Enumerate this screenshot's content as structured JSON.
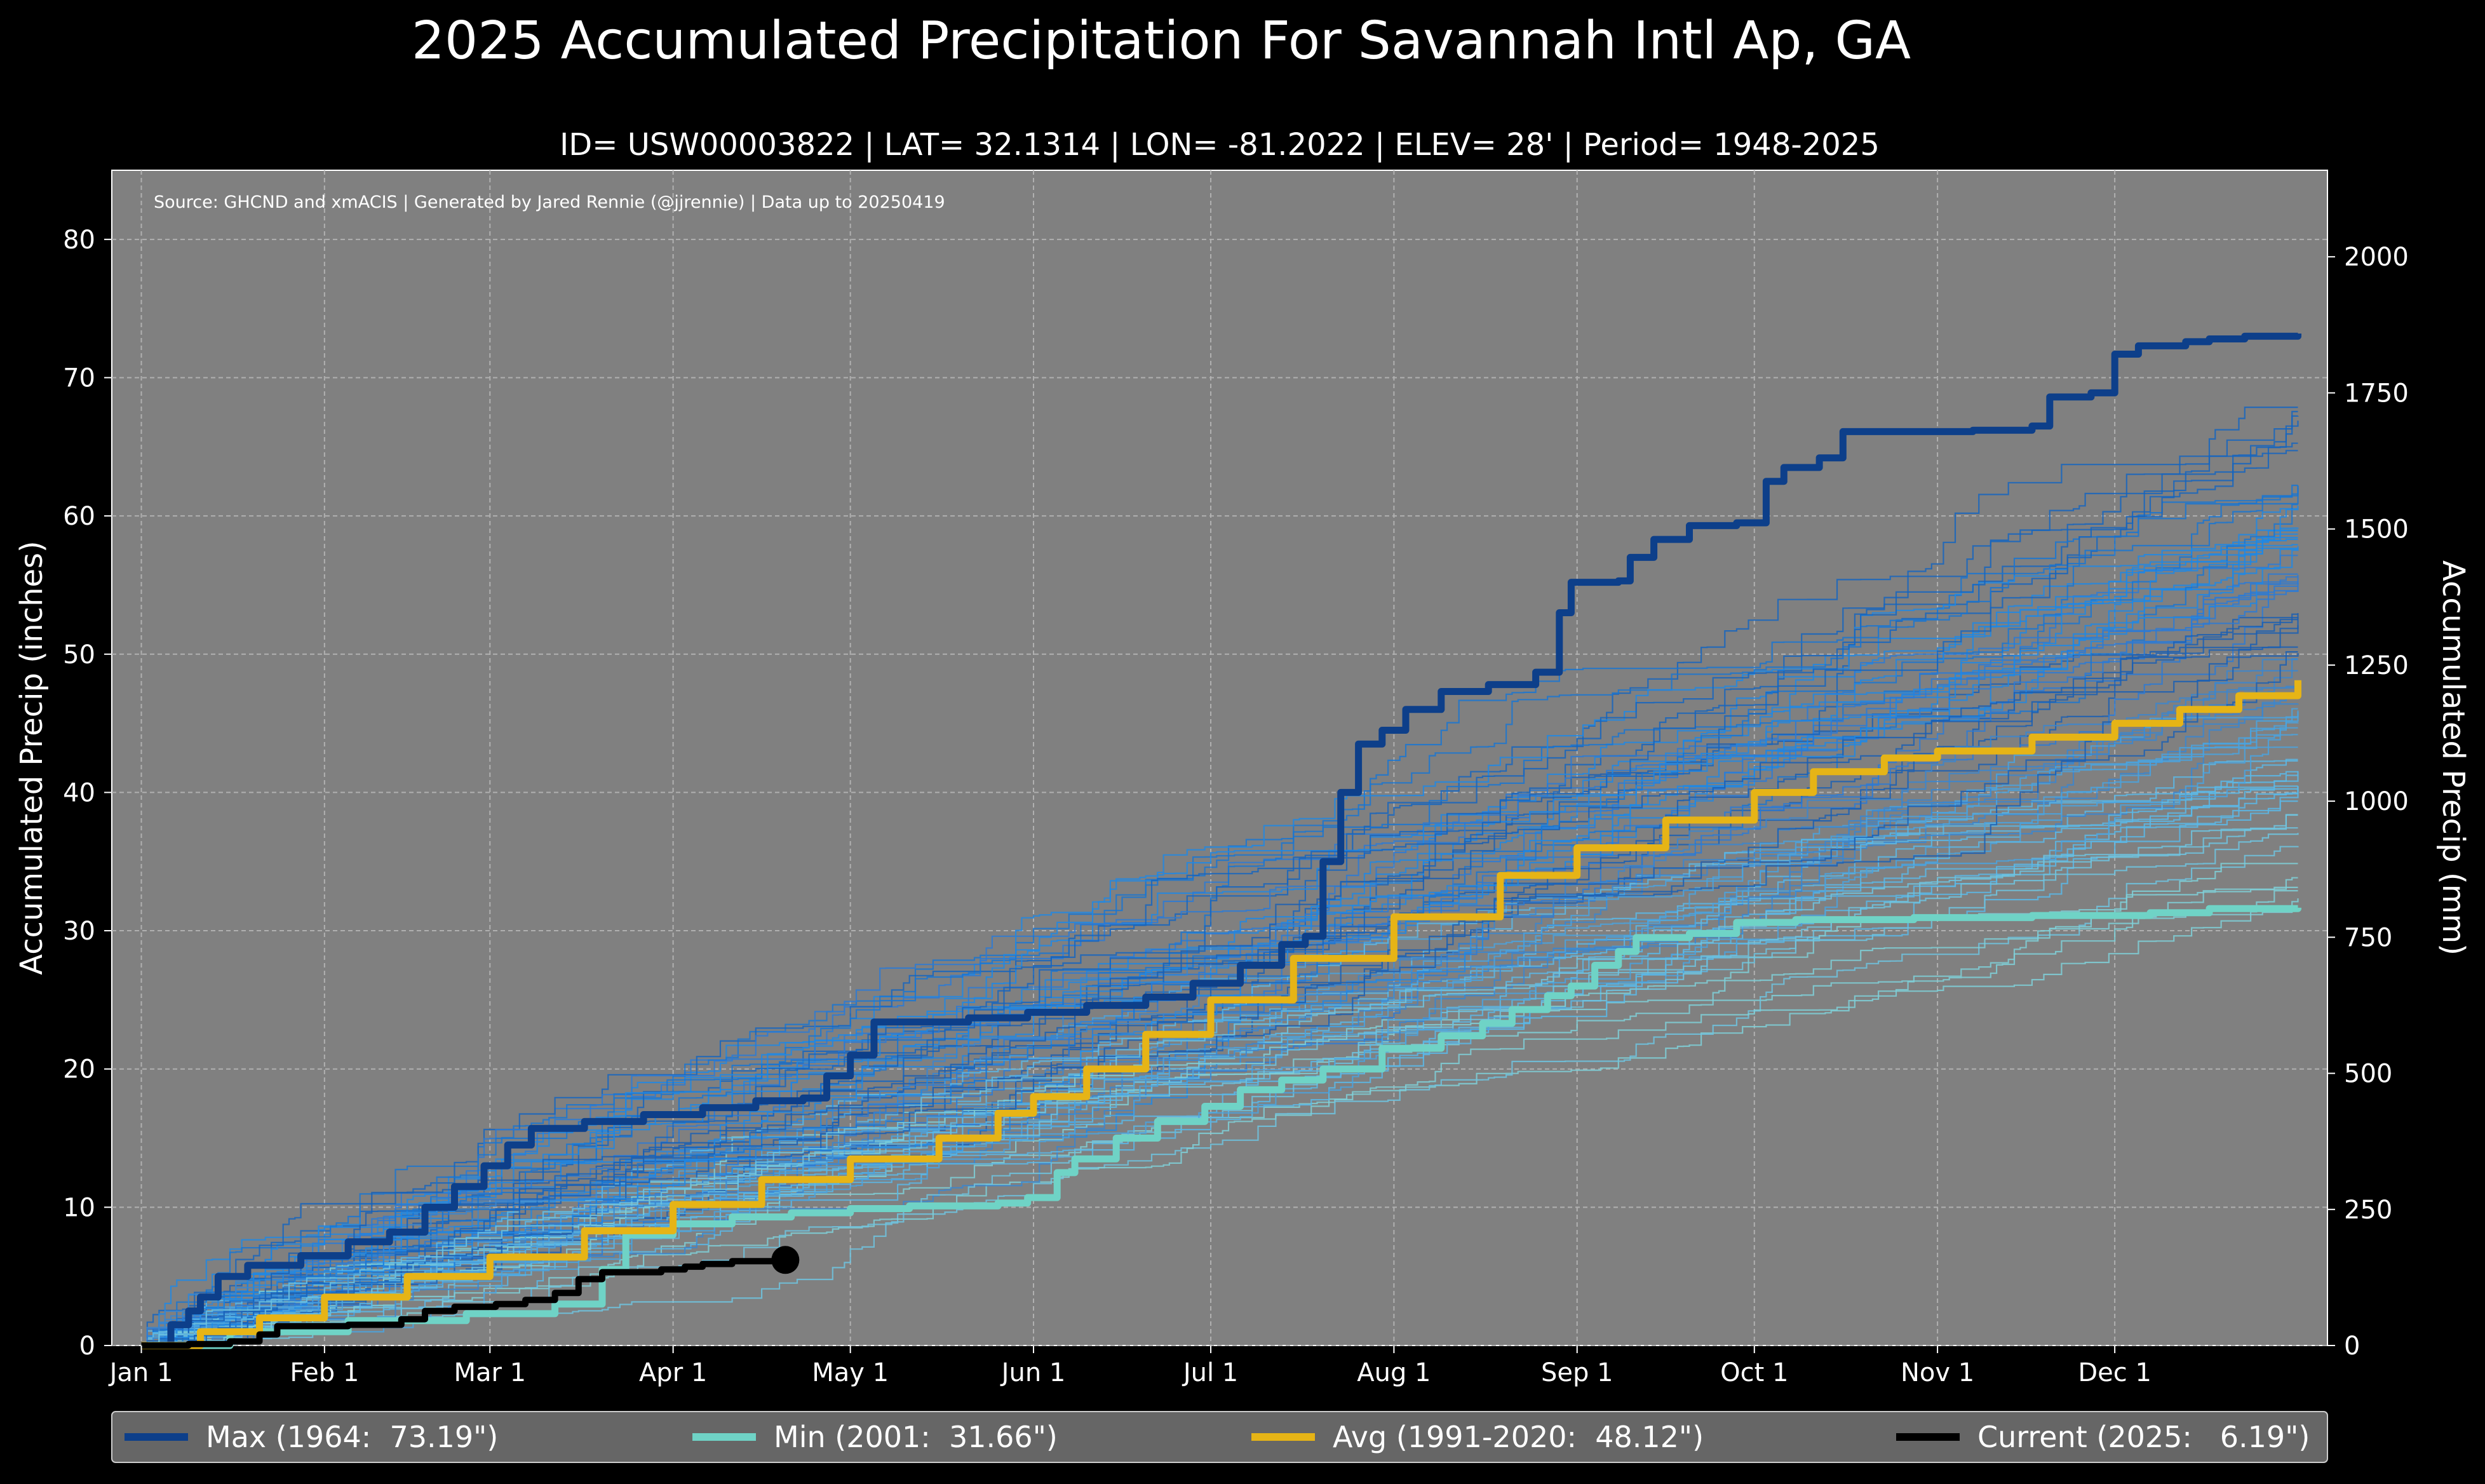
{
  "chart_data": {
    "type": "line",
    "title": "2025 Accumulated Precipitation For Savannah Intl Ap, GA",
    "subtitle": "ID= USW00003822 | LAT= 32.1314 | LON= -81.2022 | ELEV= 28' | Period= 1948-2025",
    "source": "Source: GHCND and xmACIS | Generated by Jared Rennie (@jjrennie) | Data up to 20250419",
    "ylabel": "Accumulated Precip (inches)",
    "ylabel_right": "Accumulated Precip (mm)",
    "ylim": [
      0,
      85
    ],
    "ylim_right_mm": [
      0,
      2159
    ],
    "xlim_day": [
      -5,
      370
    ],
    "x_ticks": [
      {
        "label": "Jan 1",
        "day": 0
      },
      {
        "label": "Feb 1",
        "day": 31
      },
      {
        "label": "Mar 1",
        "day": 59
      },
      {
        "label": "Apr 1",
        "day": 90
      },
      {
        "label": "May 1",
        "day": 120
      },
      {
        "label": "Jun 1",
        "day": 151
      },
      {
        "label": "Jul 1",
        "day": 181
      },
      {
        "label": "Aug 1",
        "day": 212
      },
      {
        "label": "Sep 1",
        "day": 243
      },
      {
        "label": "Oct 1",
        "day": 273
      },
      {
        "label": "Nov 1",
        "day": 304
      },
      {
        "label": "Dec 1",
        "day": 334
      }
    ],
    "y_ticks": [
      0,
      10,
      20,
      30,
      40,
      50,
      60,
      70,
      80
    ],
    "y_ticks_right_mm": [
      0,
      250,
      500,
      750,
      1000,
      1250,
      1500,
      1750,
      2000
    ],
    "grid": true,
    "series": [
      {
        "name": "Max (1964:  73.19\")",
        "color": "#0d3f8a",
        "points": [
          [
            0,
            0
          ],
          [
            5,
            1.5
          ],
          [
            8,
            2.5
          ],
          [
            10,
            3.5
          ],
          [
            13,
            5
          ],
          [
            18,
            5.8
          ],
          [
            27,
            6.5
          ],
          [
            35,
            7.5
          ],
          [
            42,
            8.2
          ],
          [
            48,
            10
          ],
          [
            53,
            11.5
          ],
          [
            58,
            13
          ],
          [
            62,
            14.5
          ],
          [
            66,
            15.7
          ],
          [
            75,
            16.2
          ],
          [
            85,
            16.7
          ],
          [
            95,
            17.2
          ],
          [
            104,
            17.7
          ],
          [
            112,
            17.9
          ],
          [
            116,
            19.5
          ],
          [
            120,
            21
          ],
          [
            124,
            23.4
          ],
          [
            140,
            23.7
          ],
          [
            150,
            24.1
          ],
          [
            160,
            24.6
          ],
          [
            170,
            25.2
          ],
          [
            178,
            26.2
          ],
          [
            186,
            27.5
          ],
          [
            193,
            29
          ],
          [
            197,
            29.6
          ],
          [
            200,
            35
          ],
          [
            203,
            40
          ],
          [
            206,
            43.5
          ],
          [
            210,
            44.5
          ],
          [
            214,
            46
          ],
          [
            220,
            47.3
          ],
          [
            228,
            47.8
          ],
          [
            236,
            48.7
          ],
          [
            240,
            53
          ],
          [
            242,
            55.2
          ],
          [
            250,
            55.3
          ],
          [
            252,
            57
          ],
          [
            256,
            58.3
          ],
          [
            262,
            59.3
          ],
          [
            270,
            59.5
          ],
          [
            275,
            62.5
          ],
          [
            278,
            63.5
          ],
          [
            284,
            64.2
          ],
          [
            288,
            66.1
          ],
          [
            300,
            66.1
          ],
          [
            310,
            66.2
          ],
          [
            320,
            66.5
          ],
          [
            323,
            68.6
          ],
          [
            330,
            68.9
          ],
          [
            334,
            71.7
          ],
          [
            338,
            72.3
          ],
          [
            346,
            72.6
          ],
          [
            350,
            72.8
          ],
          [
            356,
            73.0
          ],
          [
            365,
            73.19
          ]
        ]
      },
      {
        "name": "Min (2001:  31.66\")",
        "color": "#6fd3c6",
        "points": [
          [
            0,
            0
          ],
          [
            15,
            1.0
          ],
          [
            35,
            1.8
          ],
          [
            55,
            2.3
          ],
          [
            70,
            3.0
          ],
          [
            78,
            5.5
          ],
          [
            82,
            8.0
          ],
          [
            90,
            8.8
          ],
          [
            100,
            9.3
          ],
          [
            110,
            9.6
          ],
          [
            120,
            9.9
          ],
          [
            130,
            10.1
          ],
          [
            145,
            10.3
          ],
          [
            150,
            10.7
          ],
          [
            155,
            12.5
          ],
          [
            158,
            13.5
          ],
          [
            165,
            15
          ],
          [
            172,
            16.2
          ],
          [
            180,
            17.3
          ],
          [
            186,
            18.5
          ],
          [
            193,
            19.2
          ],
          [
            200,
            20
          ],
          [
            210,
            21.5
          ],
          [
            220,
            22.4
          ],
          [
            227,
            23.3
          ],
          [
            232,
            24.3
          ],
          [
            238,
            25.3
          ],
          [
            242,
            26
          ],
          [
            246,
            27.5
          ],
          [
            250,
            28.5
          ],
          [
            253,
            29.5
          ],
          [
            262,
            29.8
          ],
          [
            270,
            30.6
          ],
          [
            280,
            30.8
          ],
          [
            300,
            30.95
          ],
          [
            320,
            31.1
          ],
          [
            340,
            31.3
          ],
          [
            350,
            31.6
          ],
          [
            365,
            31.66
          ]
        ]
      },
      {
        "name": "Avg (1991-2020:  48.12\")",
        "color": "#e6b416",
        "points": [
          [
            0,
            0
          ],
          [
            10,
            1.0
          ],
          [
            20,
            2.0
          ],
          [
            31,
            3.5
          ],
          [
            45,
            5.0
          ],
          [
            59,
            6.4
          ],
          [
            75,
            8.3
          ],
          [
            90,
            10.2
          ],
          [
            105,
            12.0
          ],
          [
            120,
            13.5
          ],
          [
            135,
            15.0
          ],
          [
            145,
            16.8
          ],
          [
            151,
            18.0
          ],
          [
            160,
            20.0
          ],
          [
            170,
            22.5
          ],
          [
            181,
            25.0
          ],
          [
            195,
            28.0
          ],
          [
            212,
            31.0
          ],
          [
            230,
            34.0
          ],
          [
            243,
            36.0
          ],
          [
            258,
            38.0
          ],
          [
            273,
            40.0
          ],
          [
            283,
            41.5
          ],
          [
            295,
            42.5
          ],
          [
            304,
            43.0
          ],
          [
            320,
            44.0
          ],
          [
            334,
            45.0
          ],
          [
            345,
            46.0
          ],
          [
            355,
            47.0
          ],
          [
            365,
            48.12
          ]
        ]
      },
      {
        "name": "Current (2025:   6.19\")",
        "color": "#000000",
        "points": [
          [
            0,
            0
          ],
          [
            8,
            0.1
          ],
          [
            15,
            0.3
          ],
          [
            20,
            0.8
          ],
          [
            23,
            1.4
          ],
          [
            35,
            1.5
          ],
          [
            44,
            1.9
          ],
          [
            48,
            2.5
          ],
          [
            53,
            2.8
          ],
          [
            60,
            3.0
          ],
          [
            65,
            3.3
          ],
          [
            70,
            3.8
          ],
          [
            74,
            4.8
          ],
          [
            78,
            5.3
          ],
          [
            88,
            5.5
          ],
          [
            92,
            5.7
          ],
          [
            95,
            5.9
          ],
          [
            100,
            6.1
          ],
          [
            109,
            6.19
          ]
        ]
      }
    ],
    "legend": [
      {
        "label": "Max (1964:  73.19\")",
        "color": "#0d3f8a"
      },
      {
        "label": "Min (2001:  31.66\")",
        "color": "#6fd3c6"
      },
      {
        "label": "Avg (1991-2020:  48.12\")",
        "color": "#e6b416"
      },
      {
        "label": "Current (2025:   6.19\")",
        "color": "#000000"
      }
    ],
    "legend_placement": "bottom",
    "ensemble_note": "Thin background lines represent individual years 1948-2025 in shades of blue and teal"
  }
}
